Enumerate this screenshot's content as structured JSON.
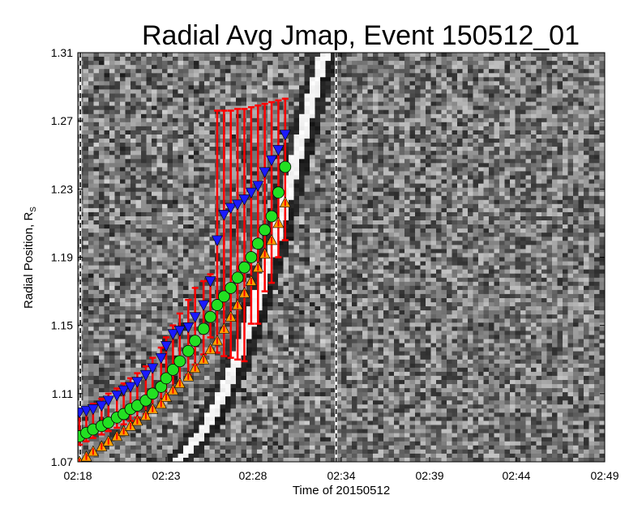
{
  "chart_data": {
    "type": "scatter",
    "title": "Radial Avg Jmap, Event 150512_01",
    "xlabel": "Time of 20150512",
    "ylabel_main": "Radial Position, R",
    "ylabel_sub": "S",
    "x_ticks": [
      "02:18",
      "02:23",
      "02:28",
      "02:34",
      "02:39",
      "02:44",
      "02:49"
    ],
    "x_tick_minutes": [
      0,
      5.2,
      10.3,
      15.5,
      20.7,
      25.8,
      31.0
    ],
    "xlim_minutes": [
      0,
      31.0
    ],
    "y_ticks": [
      "1.07",
      "1.11",
      "1.15",
      "1.19",
      "1.23",
      "1.27",
      "1.31"
    ],
    "ylim": [
      1.07,
      1.31
    ],
    "markers": {
      "dashed_lines_minutes": [
        0.15,
        15.2
      ]
    },
    "colors": {
      "front": "#1a1aff",
      "middle": "#22e022",
      "back": "#ffa000",
      "errorbar": "#ff0000"
    },
    "series": [
      {
        "marker": "triangle-down",
        "color": "#1a1aff",
        "x": [
          0.1,
          0.5,
          0.9,
          1.4,
          1.8,
          2.3,
          2.7,
          3.1,
          3.5,
          4.0,
          4.4,
          4.9,
          5.2,
          5.6,
          6.0,
          6.5,
          6.9,
          7.4,
          7.8,
          8.2,
          8.6,
          9.0,
          9.4,
          9.8,
          10.2,
          10.6,
          11.0,
          11.4,
          11.8,
          12.2
        ],
        "y": [
          1.099,
          1.1,
          1.101,
          1.103,
          1.106,
          1.109,
          1.112,
          1.114,
          1.117,
          1.121,
          1.125,
          1.131,
          1.138,
          1.145,
          1.147,
          1.149,
          1.155,
          1.162,
          1.176,
          1.2,
          1.215,
          1.219,
          1.221,
          1.224,
          1.228,
          1.232,
          1.24,
          1.247,
          1.253,
          1.262
        ]
      },
      {
        "marker": "circle",
        "color": "#22e022",
        "x": [
          0.1,
          0.5,
          0.9,
          1.4,
          1.8,
          2.3,
          2.7,
          3.1,
          3.5,
          4.0,
          4.4,
          4.9,
          5.2,
          5.6,
          6.0,
          6.5,
          6.9,
          7.4,
          7.8,
          8.2,
          8.6,
          9.0,
          9.4,
          9.8,
          10.2,
          10.6,
          11.0,
          11.4,
          11.8,
          12.2
        ],
        "y": [
          1.085,
          1.087,
          1.089,
          1.091,
          1.093,
          1.096,
          1.098,
          1.101,
          1.103,
          1.106,
          1.11,
          1.114,
          1.119,
          1.124,
          1.129,
          1.135,
          1.141,
          1.148,
          1.155,
          1.162,
          1.167,
          1.172,
          1.178,
          1.184,
          1.19,
          1.198,
          1.206,
          1.214,
          1.228,
          1.243
        ]
      },
      {
        "marker": "triangle-up",
        "color": "#ffa000",
        "x": [
          0.1,
          0.5,
          0.9,
          1.4,
          1.8,
          2.3,
          2.7,
          3.1,
          3.5,
          4.0,
          4.4,
          4.9,
          5.2,
          5.6,
          6.0,
          6.5,
          6.9,
          7.4,
          7.8,
          8.2,
          8.6,
          9.0,
          9.4,
          9.8,
          10.2,
          10.6,
          11.0,
          11.4,
          11.8,
          12.2
        ],
        "y": [
          1.07,
          1.073,
          1.076,
          1.079,
          1.082,
          1.085,
          1.088,
          1.091,
          1.094,
          1.097,
          1.101,
          1.104,
          1.108,
          1.112,
          1.116,
          1.12,
          1.125,
          1.13,
          1.136,
          1.141,
          1.148,
          1.155,
          1.162,
          1.169,
          1.176,
          1.184,
          1.192,
          1.2,
          1.21,
          1.222
        ]
      }
    ],
    "errorbars": {
      "x": [
        0.1,
        0.5,
        0.9,
        1.4,
        1.8,
        2.3,
        2.7,
        3.1,
        3.5,
        4.0,
        4.4,
        4.9,
        5.2,
        5.6,
        6.0,
        6.5,
        6.9,
        7.4,
        7.8,
        8.2,
        8.6,
        9.0,
        9.4,
        9.8,
        10.2,
        10.6,
        11.0,
        11.4,
        11.8,
        12.2
      ],
      "low": [
        1.08,
        1.082,
        1.084,
        1.086,
        1.088,
        1.09,
        1.092,
        1.094,
        1.096,
        1.098,
        1.101,
        1.104,
        1.108,
        1.112,
        1.116,
        1.121,
        1.127,
        1.133,
        1.143,
        1.134,
        1.132,
        1.131,
        1.13,
        1.129,
        1.151,
        1.151,
        1.17,
        1.175,
        1.19,
        1.2
      ],
      "high": [
        1.1,
        1.102,
        1.104,
        1.107,
        1.11,
        1.113,
        1.116,
        1.119,
        1.122,
        1.126,
        1.131,
        1.137,
        1.143,
        1.15,
        1.157,
        1.165,
        1.172,
        1.176,
        1.18,
        1.276,
        1.276,
        1.276,
        1.277,
        1.277,
        1.278,
        1.279,
        1.28,
        1.281,
        1.282,
        1.283
      ]
    }
  }
}
